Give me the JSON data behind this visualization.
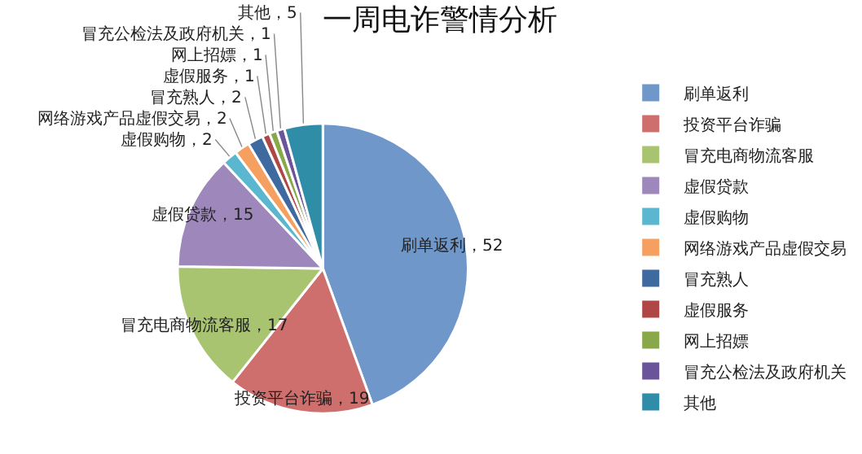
{
  "chart_data": {
    "type": "pie",
    "title": "一周电诈警情分析",
    "categories": [
      "刷单返利",
      "投资平台诈骗",
      "冒充电商物流客服",
      "虚假贷款",
      "虚假购物",
      "网络游戏产品虚假交易",
      "冒充熟人",
      "虚假服务",
      "网上招嫖",
      "冒充公检法及政府机关",
      "其他"
    ],
    "values": [
      52,
      19,
      17,
      15,
      2,
      2,
      2,
      1,
      1,
      1,
      5
    ],
    "colors": [
      "#6f97c9",
      "#cf6f6d",
      "#a9c470",
      "#9e88bb",
      "#5ab7cf",
      "#f5a060",
      "#3f6aa0",
      "#b04747",
      "#88a84a",
      "#6b559a",
      "#2f8da8"
    ],
    "value_labels": [
      "刷单返利，52",
      "投资平台诈骗，19",
      "冒充电商物流客服，17",
      "虚假贷款，15",
      "虚假购物，2",
      "网络游戏产品虚假交易，2",
      "冒充熟人，2",
      "虚假服务，1",
      "网上招嫖，1",
      "冒充公检法及政府机关，1",
      "其他，5"
    ],
    "legend": "right"
  }
}
